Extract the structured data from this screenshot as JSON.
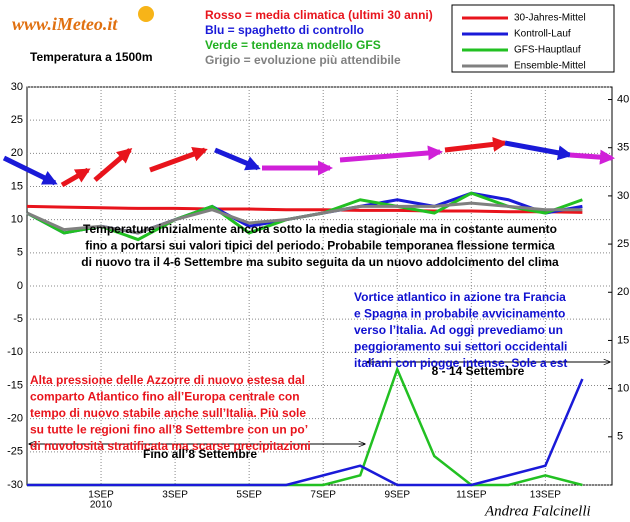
{
  "brand": "www.iMeteo.it",
  "key_notes": [
    {
      "text": "Rosso = media climatica (ultimi 30 anni)",
      "color": "#e8141c"
    },
    {
      "text": "Blu = spaghetto di controllo",
      "color": "#1a1ad8"
    },
    {
      "text": "Verde = tendenza modello GFS",
      "color": "#22b022"
    },
    {
      "text": "Grigio = evoluzione più attendibile",
      "color": "#808080"
    }
  ],
  "signature": "Andrea Falcinelli",
  "chart_data": {
    "type": "line",
    "subtitle": "Temperatura a 1500m",
    "x": [
      -1,
      0,
      1,
      2,
      3,
      4,
      5,
      6,
      7,
      8,
      9,
      10,
      11,
      12,
      13,
      14
    ],
    "xlim": [
      -1,
      14.8
    ],
    "xticks": [
      {
        "value": 1,
        "label": "1SEP"
      },
      {
        "value": 3,
        "label": "3SEP"
      },
      {
        "value": 5,
        "label": "5SEP"
      },
      {
        "value": 7,
        "label": "7SEP"
      },
      {
        "value": 9,
        "label": "9SEP"
      },
      {
        "value": 11,
        "label": "11SEP"
      },
      {
        "value": 13,
        "label": "13SEP"
      }
    ],
    "year_label": "2010",
    "ylim": [
      -30,
      30
    ],
    "yticks": [
      -30,
      -25,
      -20,
      -15,
      -10,
      -5,
      0,
      5,
      10,
      15,
      20,
      25,
      30
    ],
    "y2lim": [
      0,
      41.3
    ],
    "y2ticks": [
      5,
      10,
      15,
      20,
      25,
      30,
      35,
      40
    ],
    "grid": true,
    "series": [
      {
        "name": "30-Jahres-Mittel",
        "color": "#e8141c",
        "values": [
          12.0,
          11.9,
          11.8,
          11.7,
          11.7,
          11.6,
          11.6,
          11.5,
          11.5,
          11.4,
          11.4,
          11.3,
          11.3,
          11.2,
          11.2,
          11.1
        ]
      },
      {
        "name": "Kontroll-Lauf",
        "color": "#1a1ad8",
        "values": [
          11,
          8,
          9,
          8,
          10,
          12,
          9,
          10,
          11,
          12,
          13,
          12,
          14,
          13,
          11,
          12
        ]
      },
      {
        "name": "GFS-Hauptlauf",
        "color": "#22c022",
        "values": [
          11,
          8,
          9,
          7,
          10,
          12,
          8,
          10,
          11,
          13,
          12,
          11,
          14,
          12,
          11,
          13
        ]
      },
      {
        "name": "Ensemble-Mittel",
        "color": "#808080",
        "values": [
          11,
          8.5,
          9,
          8,
          10,
          11.5,
          9.5,
          10,
          11,
          12,
          12,
          12,
          12.5,
          12,
          11.5,
          11.5
        ]
      },
      {
        "name": "GFS-Hauptlauf",
        "color": "#22c022",
        "axis": "y2",
        "values": [
          0,
          0,
          0,
          0,
          0,
          0,
          0,
          0,
          0,
          1,
          12,
          3,
          0,
          0,
          1,
          0
        ]
      },
      {
        "name": "Kontroll-Lauf",
        "color": "#1a1ad8",
        "axis": "y2",
        "values": [
          0,
          0,
          0,
          0,
          0,
          0,
          0,
          0,
          1,
          2,
          0,
          0,
          0,
          1,
          2,
          11
        ]
      }
    ],
    "annotations": [
      {
        "color": "#000000",
        "lines": [
          "Temperature inizialmente ancora sotto la media stagionale ma in costante aumento",
          "fino a portarsi sui valori tipici del periodo. Probabile temporanea flessione  termica",
          "di nuovo tra il 4-6 Settembre ma subito seguita da un nuovo addolcimento del clima"
        ]
      },
      {
        "color": "#1010d0",
        "lines": [
          "Vortice atlantico in azione tra Francia",
          "e Spagna in probabile avvicinamento",
          "verso l’Italia. Ad oggi prevediamo un",
          "peggioramento sui settori occidentali",
          "italiani con piogge intense. Sole a est"
        ]
      },
      {
        "color": "#000000",
        "lines": [
          "8 - 14 Settembre"
        ]
      },
      {
        "color": "#e8141c",
        "lines": [
          "Alta pressione delle Azzorre di nuovo estesa dal",
          "comparto Atlantico fino all’Europa centrale con",
          "tempo di nuovo stabile anche sull’Italia. Più sole",
          "su tutte le regioni fino all’8 Settembre con un po’",
          "di nuvolosità stratificata ma scarse precipitazioni"
        ]
      },
      {
        "color": "#000000",
        "lines": [
          "Fino all’8 Settembre"
        ]
      }
    ]
  }
}
